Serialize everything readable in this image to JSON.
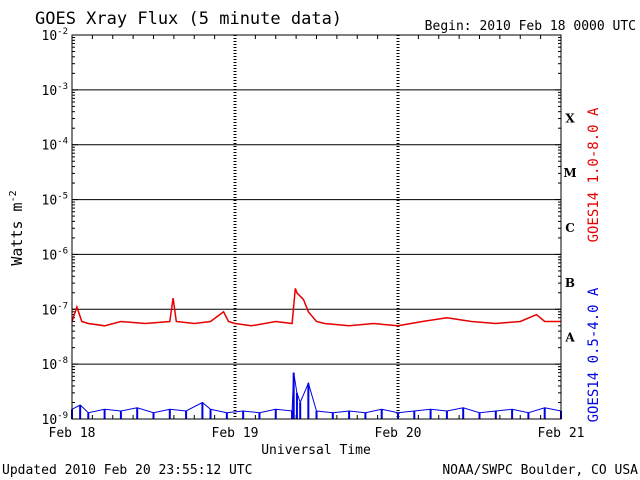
{
  "chart_data": {
    "type": "line",
    "title": "GOES Xray Flux (5 minute data)",
    "begin": "Begin:  2010 Feb 18 0000 UTC",
    "xlabel": "Universal Time",
    "ylabel": "Watts m",
    "ylabel_exp": "-2",
    "x_ticks": [
      "Feb 18",
      "Feb 19",
      "Feb 20",
      "Feb 21"
    ],
    "y_scale": "log",
    "y_ticks": [
      {
        "base": "10",
        "exp": "-2",
        "value": 0.01
      },
      {
        "base": "10",
        "exp": "-3",
        "value": 0.001
      },
      {
        "base": "10",
        "exp": "-4",
        "value": 0.0001
      },
      {
        "base": "10",
        "exp": "-5",
        "value": 1e-05
      },
      {
        "base": "10",
        "exp": "-6",
        "value": 1e-06
      },
      {
        "base": "10",
        "exp": "-7",
        "value": 1e-07
      },
      {
        "base": "10",
        "exp": "-8",
        "value": 1e-08
      },
      {
        "base": "10",
        "exp": "-9",
        "value": 1e-09
      }
    ],
    "ylim": [
      1e-09,
      0.01
    ],
    "xlim_days": [
      0,
      3
    ],
    "flare_classes": [
      {
        "label": "X",
        "value": 0.0001
      },
      {
        "label": "M",
        "value": 1e-05
      },
      {
        "label": "C",
        "value": 1e-06
      },
      {
        "label": "B",
        "value": 1e-07
      },
      {
        "label": "A",
        "value": 1e-08
      }
    ],
    "series": [
      {
        "name": "GOES14 1.0-8.0 A",
        "color": "#e60000",
        "x": [
          0,
          0.03,
          0.06,
          0.1,
          0.2,
          0.3,
          0.45,
          0.6,
          0.62,
          0.64,
          0.75,
          0.85,
          0.93,
          0.96,
          1.0,
          1.1,
          1.25,
          1.35,
          1.37,
          1.38,
          1.42,
          1.45,
          1.5,
          1.55,
          1.7,
          1.85,
          2.0,
          2.15,
          2.3,
          2.45,
          2.6,
          2.75,
          2.85,
          2.9,
          3.0
        ],
        "y": [
          6e-08,
          1.1e-07,
          6e-08,
          5.5e-08,
          5e-08,
          6e-08,
          5.5e-08,
          6e-08,
          1.6e-07,
          6e-08,
          5.5e-08,
          6e-08,
          9e-08,
          6e-08,
          5.5e-08,
          5e-08,
          6e-08,
          5.5e-08,
          2.4e-07,
          2e-07,
          1.5e-07,
          9e-08,
          6e-08,
          5.5e-08,
          5e-08,
          5.5e-08,
          5e-08,
          6e-08,
          7e-08,
          6e-08,
          5.5e-08,
          6e-08,
          8e-08,
          6e-08,
          6e-08
        ]
      },
      {
        "name": "GOES14 0.5-4.0 A",
        "color": "#0000e6",
        "x": [
          0,
          0.05,
          0.1,
          0.2,
          0.3,
          0.4,
          0.5,
          0.6,
          0.7,
          0.8,
          0.85,
          0.95,
          1.05,
          1.15,
          1.25,
          1.35,
          1.36,
          1.38,
          1.4,
          1.45,
          1.5,
          1.6,
          1.7,
          1.8,
          1.9,
          2.0,
          2.1,
          2.2,
          2.3,
          2.4,
          2.5,
          2.6,
          2.7,
          2.8,
          2.9,
          3.0
        ],
        "y": [
          1.5e-09,
          1.8e-09,
          1.3e-09,
          1.5e-09,
          1.4e-09,
          1.6e-09,
          1.3e-09,
          1.5e-09,
          1.4e-09,
          2e-09,
          1.5e-09,
          1.3e-09,
          1.4e-09,
          1.3e-09,
          1.5e-09,
          1.4e-09,
          7e-09,
          3e-09,
          2e-09,
          4.5e-09,
          1.4e-09,
          1.3e-09,
          1.4e-09,
          1.3e-09,
          1.5e-09,
          1.3e-09,
          1.4e-09,
          1.5e-09,
          1.4e-09,
          1.6e-09,
          1.3e-09,
          1.4e-09,
          1.5e-09,
          1.3e-09,
          1.6e-09,
          1.4e-09
        ]
      }
    ]
  },
  "footer": {
    "updated": "Updated 2010 Feb 20 23:55:12 UTC",
    "source": "NOAA/SWPC Boulder, CO USA"
  }
}
